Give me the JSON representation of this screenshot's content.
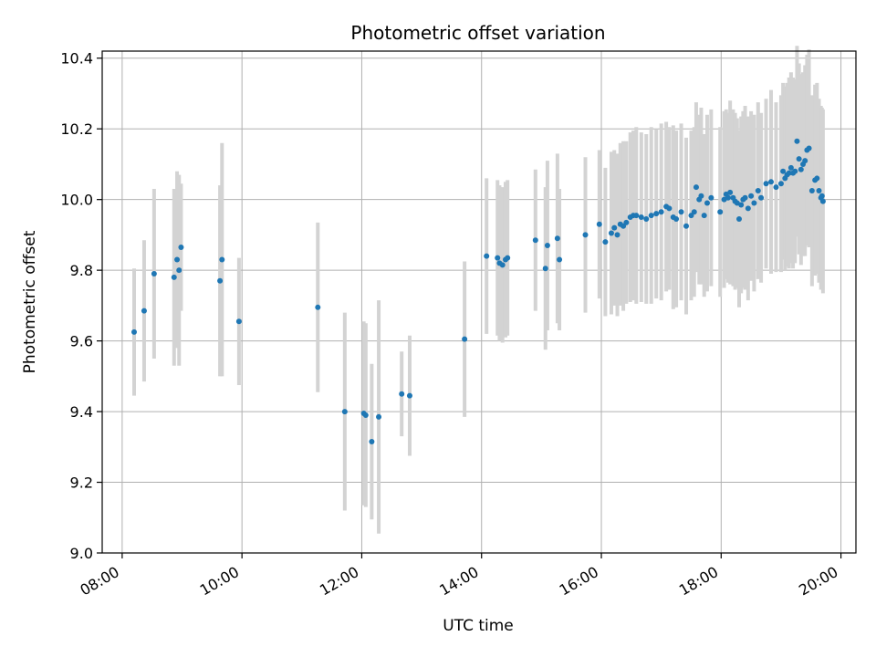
{
  "chart_data": {
    "type": "scatter",
    "title": "Photometric offset variation",
    "xlabel": "UTC time",
    "ylabel": "Photometric offset",
    "xlim": [
      "07:40",
      "20:15"
    ],
    "ylim": [
      9.0,
      10.42
    ],
    "x_ticks": [
      "08:00",
      "10:00",
      "12:00",
      "14:00",
      "16:00",
      "18:00",
      "20:00"
    ],
    "y_ticks": [
      "9.0",
      "9.2",
      "9.4",
      "9.6",
      "9.8",
      "10.0",
      "10.2",
      "10.4"
    ],
    "grid": true,
    "colors": {
      "points": "#1f77b4",
      "errorbars": "#d3d3d3",
      "grid": "#b0b0b0"
    },
    "series": [
      {
        "x": [
          "08:12",
          "08:22",
          "08:32",
          "08:52",
          "08:55",
          "08:57",
          "08:59",
          "09:38",
          "09:40",
          "09:57",
          "11:16",
          "11:43",
          "12:02",
          "12:04",
          "12:10",
          "12:17",
          "12:40",
          "12:48",
          "13:43",
          "14:05",
          "14:16",
          "14:18",
          "14:21",
          "14:24",
          "14:26",
          "14:54",
          "15:04",
          "15:06",
          "15:16",
          "15:18",
          "15:44",
          "15:58",
          "16:04",
          "16:10",
          "16:13",
          "16:16",
          "16:19",
          "16:22",
          "16:25",
          "16:29",
          "16:32",
          "16:35",
          "16:40",
          "16:45",
          "16:50",
          "16:55",
          "17:00",
          "17:05",
          "17:08",
          "17:12",
          "17:15",
          "17:20",
          "17:25",
          "17:30",
          "17:33",
          "17:35",
          "17:38",
          "17:40",
          "17:43",
          "17:46",
          "17:50",
          "17:59",
          "18:03",
          "18:05",
          "18:07",
          "18:09",
          "18:12",
          "18:14",
          "18:16",
          "18:18",
          "18:20",
          "18:22",
          "18:24",
          "18:27",
          "18:30",
          "18:33",
          "18:37",
          "18:40",
          "18:45",
          "18:50",
          "18:55",
          "19:00",
          "19:02",
          "19:04",
          "19:06",
          "19:08",
          "19:10",
          "19:12",
          "19:14",
          "19:16",
          "19:18",
          "19:20",
          "19:22",
          "19:24",
          "19:26",
          "19:28",
          "19:31",
          "19:34",
          "19:36",
          "19:38",
          "19:40",
          "19:41",
          "19:42"
        ],
        "y": [
          9.625,
          9.685,
          9.79,
          9.78,
          9.83,
          9.8,
          9.865,
          9.77,
          9.83,
          9.655,
          9.695,
          9.4,
          9.395,
          9.39,
          9.315,
          9.385,
          9.45,
          9.445,
          9.605,
          9.84,
          9.835,
          9.82,
          9.815,
          9.83,
          9.835,
          9.885,
          9.805,
          9.87,
          9.89,
          9.83,
          9.9,
          9.93,
          9.88,
          9.905,
          9.92,
          9.9,
          9.93,
          9.925,
          9.935,
          9.95,
          9.955,
          9.955,
          9.95,
          9.945,
          9.955,
          9.96,
          9.965,
          9.98,
          9.975,
          9.95,
          9.945,
          9.965,
          9.925,
          9.955,
          9.965,
          10.035,
          10.0,
          10.01,
          9.955,
          9.99,
          10.005,
          9.965,
          10.0,
          10.015,
          10.005,
          10.02,
          10.005,
          9.995,
          9.99,
          9.945,
          9.985,
          10.0,
          10.005,
          9.975,
          10.01,
          9.99,
          10.025,
          10.005,
          10.045,
          10.05,
          10.035,
          10.045,
          10.08,
          10.06,
          10.07,
          10.075,
          10.09,
          10.075,
          10.08,
          10.165,
          10.115,
          10.085,
          10.1,
          10.11,
          10.14,
          10.145,
          10.025,
          10.055,
          10.06,
          10.025,
          10.005,
          10.01,
          9.995
        ],
        "yerr": [
          0.18,
          0.2,
          0.24,
          0.25,
          0.25,
          0.27,
          0.18,
          0.27,
          0.33,
          0.18,
          0.24,
          0.28,
          0.26,
          0.26,
          0.22,
          0.33,
          0.12,
          0.17,
          0.22,
          0.22,
          0.22,
          0.22,
          0.22,
          0.22,
          0.22,
          0.2,
          0.23,
          0.24,
          0.24,
          0.2,
          0.22,
          0.21,
          0.21,
          0.23,
          0.22,
          0.23,
          0.23,
          0.24,
          0.23,
          0.24,
          0.24,
          0.25,
          0.24,
          0.24,
          0.25,
          0.24,
          0.25,
          0.24,
          0.23,
          0.26,
          0.25,
          0.25,
          0.25,
          0.24,
          0.24,
          0.24,
          0.24,
          0.25,
          0.23,
          0.25,
          0.25,
          0.24,
          0.25,
          0.24,
          0.24,
          0.26,
          0.25,
          0.25,
          0.24,
          0.25,
          0.25,
          0.25,
          0.26,
          0.26,
          0.24,
          0.25,
          0.25,
          0.24,
          0.24,
          0.26,
          0.24,
          0.25,
          0.25,
          0.26,
          0.26,
          0.27,
          0.27,
          0.27,
          0.26,
          0.27,
          0.27,
          0.27,
          0.26,
          0.27,
          0.27,
          0.28,
          0.27,
          0.27,
          0.27,
          0.26,
          0.26,
          0.25,
          0.26
        ]
      }
    ]
  }
}
